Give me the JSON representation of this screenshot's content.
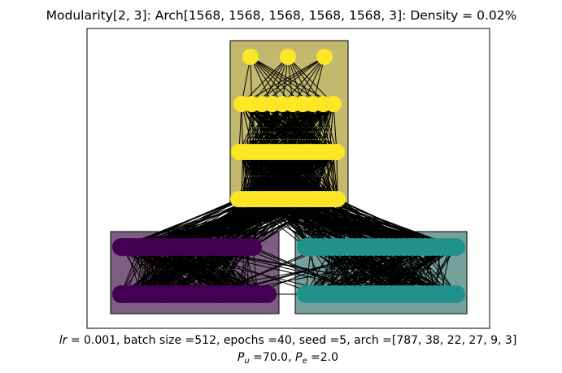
{
  "figure": {
    "title": "Modularity[2, 3]: Arch[1568, 1568, 1568, 1568, 1568, 3]: Density = 0.02%",
    "caption_line1": {
      "lr_symbol": "lr",
      "rest": " =  0.001, batch size =512, epochs =40, seed =5, arch =[787, 38, 22, 27, 9, 3]"
    },
    "caption_line2": {
      "pu_base": "P",
      "pu_sub": "u",
      "pu_rest": " =70.0, ",
      "pe_base": "P",
      "pe_sub": "e",
      "pe_rest": " =2.0"
    }
  },
  "colors": {
    "module_top": "#c2b96f",
    "module_left": "#7c5e80",
    "module_right": "#76a09c",
    "node_yellow": "#fde725",
    "node_purple": "#440154",
    "node_teal": "#21918c",
    "edge": "#000000"
  },
  "modules": [
    {
      "name": "module-top",
      "color_key": "module_top"
    },
    {
      "name": "module-left",
      "color_key": "module_left"
    },
    {
      "name": "module-right",
      "color_key": "module_right"
    }
  ]
}
